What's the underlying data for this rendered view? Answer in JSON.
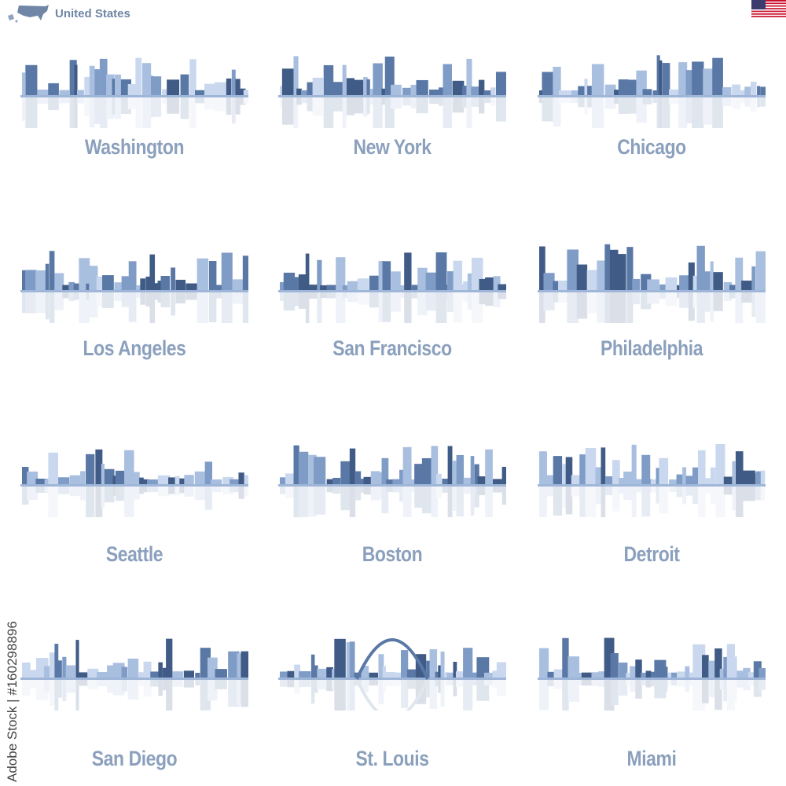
{
  "header": {
    "title": "United States",
    "icon": "usa-map-icon",
    "flag": "us-flag-icon"
  },
  "colors": {
    "label": "#8ba0bd",
    "dark": "#3f5b86",
    "mid": "#7f9cc6",
    "light": "#c9d8ee"
  },
  "cities": [
    {
      "name": "Washington"
    },
    {
      "name": "New York"
    },
    {
      "name": "Chicago"
    },
    {
      "name": "Los Angeles"
    },
    {
      "name": "San Francisco"
    },
    {
      "name": "Philadelphia"
    },
    {
      "name": "Seattle"
    },
    {
      "name": "Boston"
    },
    {
      "name": "Detroit"
    },
    {
      "name": "San Diego"
    },
    {
      "name": "St. Louis"
    },
    {
      "name": "Miami"
    }
  ],
  "credit": "Adobe Stock | #160298896"
}
